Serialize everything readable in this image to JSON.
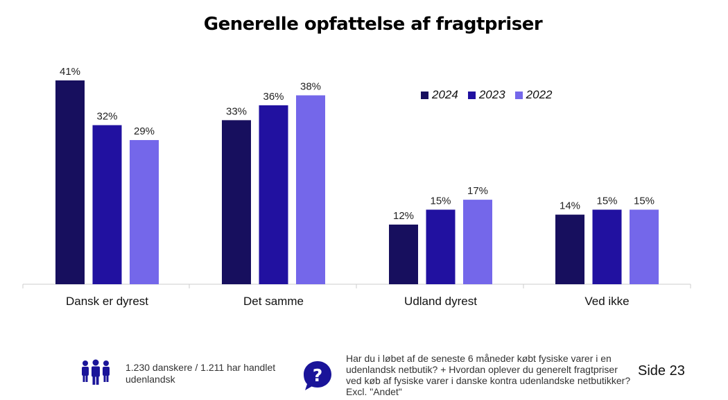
{
  "title": "Generelle opfattelse af fragtpriser",
  "chart_data": {
    "type": "bar",
    "title": "Generelle opfattelse af fragtpriser",
    "categories": [
      "Dansk er dyrest",
      "Det samme",
      "Udland dyrest",
      "Ved ikke"
    ],
    "series": [
      {
        "name": "2024",
        "values": [
          41,
          33,
          12,
          14
        ],
        "labels": [
          "41%",
          "33%",
          "12%",
          "14%"
        ],
        "color": "#170f5e"
      },
      {
        "name": "2023",
        "values": [
          32,
          36,
          15,
          15
        ],
        "labels": [
          "32%",
          "36%",
          "15%",
          "15%"
        ],
        "color": "#2111a0"
      },
      {
        "name": "2022",
        "values": [
          29,
          38,
          17,
          15
        ],
        "labels": [
          "29%",
          "38%",
          "17%",
          "15%"
        ],
        "color": "#7467ea"
      }
    ],
    "legend_position": "top-right",
    "grid": false,
    "ylim": [
      0,
      41
    ]
  },
  "footer": {
    "sample_text": "1.230 danskere / 1.211 har handlet udenlandsk",
    "question_text": "Har du i løbet af de seneste 6 måneder købt fysiske varer i en udenlandsk netbutik? + Hvordan oplever du generelt fragtpriser ved køb af fysiske varer i danske kontra udenlandske netbutikker? Excl. \"Andet\"",
    "people_icon": "people-group-icon",
    "question_icon": "question-bubble-icon",
    "icon_color": "#1a1499",
    "page_number": "Side 23"
  }
}
